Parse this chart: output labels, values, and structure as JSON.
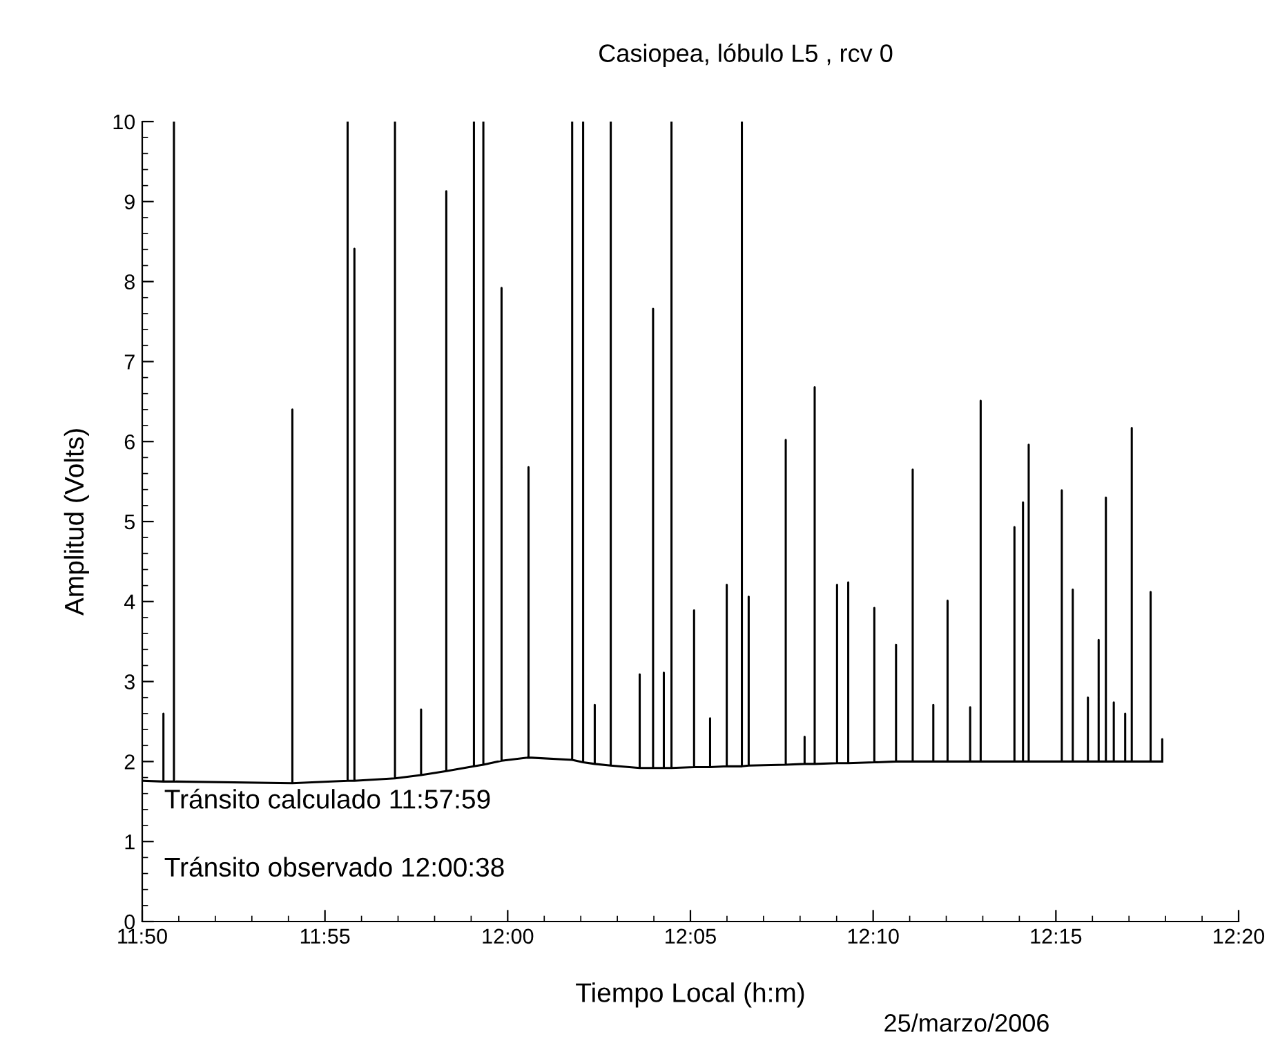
{
  "chart_data": {
    "type": "line",
    "title": "Casiopea, lóbulo L5 , rcv 0",
    "xlabel": "Tiempo Local (h:m)",
    "ylabel": "Amplitud (Volts)",
    "annotations": [
      "Tránsito calculado 11:57:59",
      "Tránsito observado 12:00:38",
      "25/marzo/2006"
    ],
    "xlim": [
      11.833333,
      12.333333
    ],
    "xticks": [
      {
        "value": 11.833333,
        "label": "11:50"
      },
      {
        "value": 11.916667,
        "label": "11:55"
      },
      {
        "value": 12.0,
        "label": "12:00"
      },
      {
        "value": 12.083333,
        "label": "12:05"
      },
      {
        "value": 12.166667,
        "label": "12:10"
      },
      {
        "value": 12.25,
        "label": "12:15"
      },
      {
        "value": 12.333333,
        "label": "12:20"
      }
    ],
    "ylim": [
      0,
      10
    ],
    "yticks": [
      0,
      1,
      2,
      3,
      4,
      5,
      6,
      7,
      8,
      9,
      10
    ],
    "grid": false,
    "legend": false,
    "marker": "none",
    "line_style": "solid",
    "series": [
      {
        "color": "#000000",
        "x": [
          11.834,
          11.843,
          11.843,
          11.843,
          11.8478,
          11.8478,
          11.8478,
          11.9018,
          11.9018,
          11.9018,
          11.927,
          11.927,
          11.927,
          11.9301,
          11.9301,
          11.9301,
          11.9486,
          11.9486,
          11.9486,
          11.9605,
          11.9605,
          11.9605,
          11.972,
          11.972,
          11.972,
          11.9846,
          11.9846,
          11.9846,
          11.9889,
          11.9889,
          11.9889,
          11.9972,
          11.9972,
          11.9972,
          12.0095,
          12.0095,
          12.0095,
          12.0294,
          12.0294,
          12.0294,
          12.0344,
          12.0344,
          12.0344,
          12.0397,
          12.0397,
          12.0397,
          12.047,
          12.047,
          12.047,
          12.0602,
          12.0602,
          12.0602,
          12.0663,
          12.0663,
          12.0663,
          12.0712,
          12.0712,
          12.0712,
          12.0747,
          12.0747,
          12.0747,
          12.085,
          12.085,
          12.085,
          12.0923,
          12.0923,
          12.0923,
          12.0999,
          12.0999,
          12.0999,
          12.1068,
          12.1068,
          12.1068,
          12.1099,
          12.1099,
          12.1099,
          12.1268,
          12.1268,
          12.1268,
          12.1354,
          12.1354,
          12.1354,
          12.14,
          12.14,
          12.14,
          12.1502,
          12.1502,
          12.1502,
          12.1553,
          12.1553,
          12.1553,
          12.1672,
          12.1672,
          12.1672,
          12.1771,
          12.1771,
          12.1771,
          12.1847,
          12.1847,
          12.1847,
          12.1941,
          12.1941,
          12.1941,
          12.2006,
          12.2006,
          12.2006,
          12.2109,
          12.2109,
          12.2109,
          12.2157,
          12.2157,
          12.2157,
          12.2311,
          12.2311,
          12.2311,
          12.235,
          12.235,
          12.235,
          12.2376,
          12.2376,
          12.2376,
          12.2527,
          12.2527,
          12.2527,
          12.2577,
          12.2577,
          12.2577,
          12.2646,
          12.2646,
          12.2646,
          12.2695,
          12.2695,
          12.2695,
          12.2728,
          12.2728,
          12.2728,
          12.2764,
          12.2764,
          12.2764,
          12.2816,
          12.2816,
          12.2816,
          12.2846,
          12.2846,
          12.2846,
          12.2932,
          12.2932,
          12.2932,
          12.2985,
          12.2985,
          12.2985
        ],
        "values": [
          1.76,
          1.75,
          2.6,
          1.75,
          1.75,
          10,
          1.75,
          1.73,
          6.4,
          1.73,
          1.76,
          10,
          1.76,
          1.76,
          8.41,
          1.76,
          1.79,
          10,
          1.79,
          1.83,
          2.65,
          1.83,
          1.88,
          9.13,
          1.88,
          1.94,
          10,
          1.94,
          1.96,
          10,
          1.96,
          2.01,
          7.92,
          2.01,
          2.05,
          5.68,
          2.05,
          2.02,
          10,
          2.02,
          1.99,
          10,
          1.99,
          1.97,
          2.71,
          1.97,
          1.95,
          10,
          1.95,
          1.92,
          3.09,
          1.92,
          1.92,
          7.66,
          1.92,
          1.92,
          3.11,
          1.92,
          1.92,
          10,
          1.92,
          1.93,
          3.89,
          1.93,
          1.93,
          2.54,
          1.93,
          1.94,
          4.21,
          1.94,
          1.94,
          10,
          1.94,
          1.95,
          4.06,
          1.95,
          1.96,
          6.02,
          1.96,
          1.97,
          2.31,
          1.97,
          1.97,
          6.68,
          1.97,
          1.98,
          4.21,
          1.98,
          1.98,
          4.24,
          1.98,
          1.99,
          3.92,
          1.99,
          2.0,
          3.46,
          2.0,
          2.0,
          5.65,
          2.0,
          2.0,
          2.71,
          2.0,
          2.0,
          4.01,
          2.0,
          2.0,
          2.68,
          2.0,
          2.0,
          6.51,
          2.0,
          2.0,
          4.93,
          2.0,
          2.0,
          5.24,
          2.0,
          2.0,
          5.96,
          2.0,
          2.0,
          5.39,
          2.0,
          2.0,
          4.15,
          2.0,
          2.0,
          2.8,
          2.0,
          2.0,
          3.52,
          2.0,
          2.0,
          5.3,
          2.0,
          2.0,
          2.74,
          2.0,
          2.0,
          2.6,
          2.0,
          2.0,
          6.17,
          2.0,
          2.0,
          4.12,
          2.0,
          2.0,
          2.28,
          2.0
        ]
      }
    ]
  }
}
